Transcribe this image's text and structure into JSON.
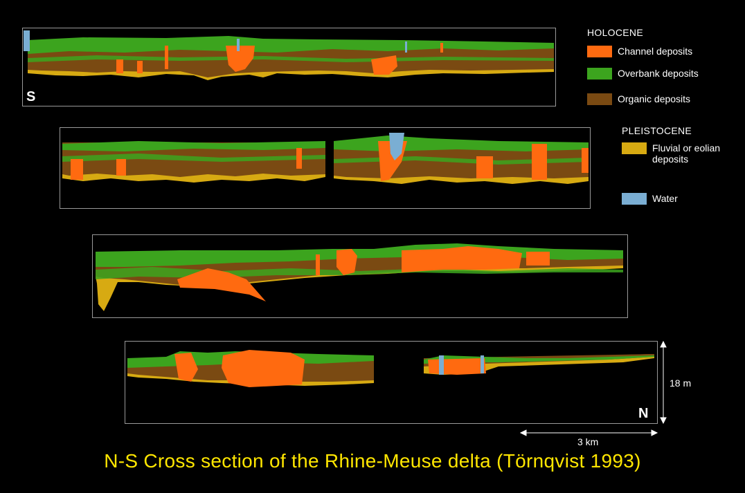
{
  "caption": "N-S Cross section of the Rhine-Meuse delta (Törnqvist 1993)",
  "direction": {
    "south": "S",
    "north": "N"
  },
  "scale": {
    "vertical": "18 m",
    "horizontal": "3 km"
  },
  "legend": {
    "holocene_heading": "HOLOCENE",
    "pleistocene_heading": "PLEISTOCENE",
    "items": [
      {
        "key": "channel",
        "label": "Channel deposits",
        "color": "#ff6a10"
      },
      {
        "key": "overbank",
        "label": "Overbank deposits",
        "color": "#3ca41e"
      },
      {
        "key": "organic",
        "label": "Organic deposits",
        "color": "#7a4a12"
      },
      {
        "key": "fluvial",
        "label_line1": "Fluvial or eolian",
        "label_line2": "deposits",
        "color": "#d7aa12"
      },
      {
        "key": "water",
        "label": "Water",
        "color": "#7aaed3"
      }
    ]
  }
}
